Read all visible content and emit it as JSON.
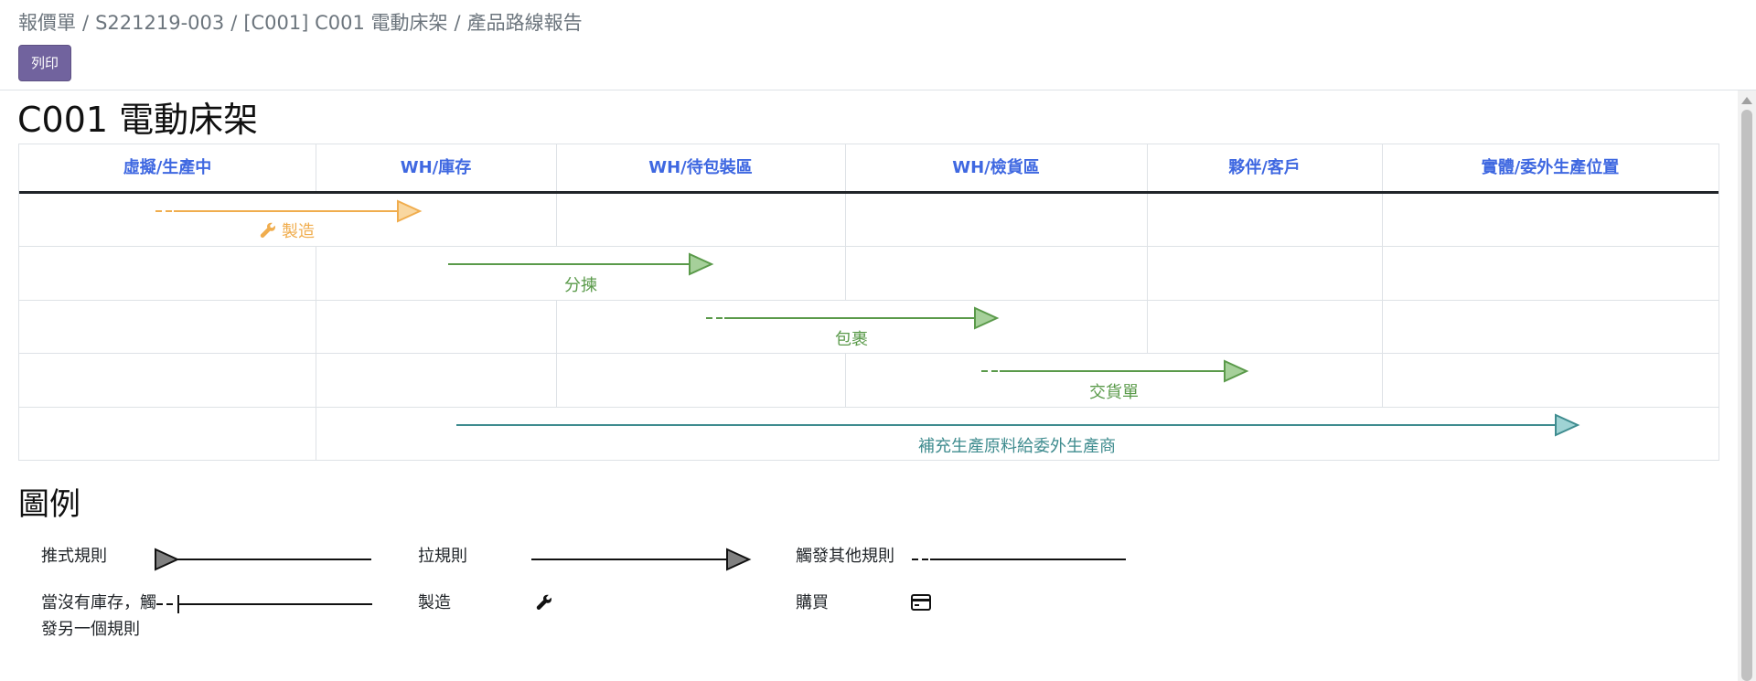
{
  "breadcrumb": [
    "報價單",
    "S221219-003",
    "[C001] C001 電動床架",
    "產品路線報告"
  ],
  "print_label": "列印",
  "page_title": "C001 電動床架",
  "columns": [
    "虛擬/生產中",
    "WH/庫存",
    "WH/待包裝區",
    "WH/檢貨區",
    "夥伴/客戶",
    "實體/委外生產位置"
  ],
  "routes": [
    {
      "label": "製造",
      "from": "虛擬/生產中",
      "to": "WH/庫存",
      "trigger_other_rule": true,
      "icon": "wrench-icon",
      "color": "#f0ad4e"
    },
    {
      "label": "分揀",
      "from": "WH/庫存",
      "to": "WH/待包裝區",
      "trigger_other_rule": false,
      "icon": "",
      "color": "#5a9a4a"
    },
    {
      "label": "包裹",
      "from": "WH/待包裝區",
      "to": "WH/檢貨區",
      "trigger_other_rule": true,
      "icon": "",
      "color": "#5a9a4a"
    },
    {
      "label": "交貨單",
      "from": "WH/檢貨區",
      "to": "夥伴/客戶",
      "trigger_other_rule": true,
      "icon": "",
      "color": "#5a9a4a"
    },
    {
      "label": "補充生產原料給委外生產商",
      "from": "WH/庫存",
      "to": "實體/委外生產位置",
      "trigger_other_rule": false,
      "icon": "",
      "color": "#3f8c8f"
    }
  ],
  "legend": {
    "title": "圖例",
    "items": [
      {
        "label": "推式規則",
        "symbol": "push-rule-arrow-icon"
      },
      {
        "label": "拉規則",
        "symbol": "pull-rule-arrow-icon"
      },
      {
        "label": "觸發其他規則",
        "symbol": "dashed-line-icon"
      },
      {
        "label": "當沒有庫存，觸發另一個規則",
        "symbol": "dashed-line-tick-icon"
      },
      {
        "label": "製造",
        "symbol": "wrench-icon"
      },
      {
        "label": "購買",
        "symbol": "credit-card-icon"
      }
    ]
  },
  "colors": {
    "primary": "#71639e",
    "header_link": "#3f68e1",
    "manufacture": "#f0ad4e",
    "internal": "#5a9a4a",
    "subcontract": "#3f8c8f"
  }
}
